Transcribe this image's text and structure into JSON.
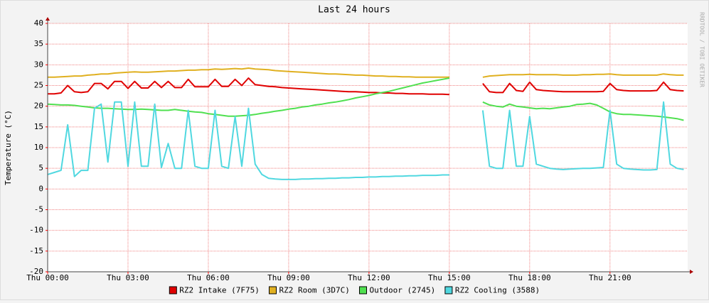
{
  "chart_data": {
    "type": "line",
    "title": "Last 24 hours",
    "y_label": "Temperature (°C)",
    "credit": "RRDTOOL / TOBI OETIKER",
    "x": [
      0,
      0.25,
      0.5,
      0.75,
      1,
      1.25,
      1.5,
      1.75,
      2,
      2.25,
      2.5,
      2.75,
      3,
      3.25,
      3.5,
      3.75,
      4,
      4.25,
      4.5,
      4.75,
      5,
      5.25,
      5.5,
      5.75,
      6,
      6.25,
      6.5,
      6.75,
      7,
      7.25,
      7.5,
      7.75,
      8,
      8.25,
      8.5,
      8.75,
      9,
      9.25,
      9.5,
      9.75,
      10,
      10.25,
      10.5,
      10.75,
      11,
      11.25,
      11.5,
      11.75,
      12,
      12.25,
      12.5,
      12.75,
      13,
      13.25,
      13.5,
      13.75,
      14,
      14.25,
      14.5,
      14.75,
      15,
      15.25,
      15.5,
      15.75,
      16,
      16.25,
      16.5,
      16.75,
      17,
      17.25,
      17.5,
      17.75,
      18,
      18.25,
      18.5,
      18.75,
      19,
      19.25,
      19.5,
      19.75,
      20,
      20.25,
      20.5,
      20.75,
      21,
      21.25,
      21.5,
      21.75,
      22,
      22.25,
      22.5,
      22.75,
      23,
      23.25,
      23.5,
      23.75
    ],
    "xlim": [
      0,
      23.9
    ],
    "xticks": [
      {
        "value": 0,
        "label": "Thu 00:00"
      },
      {
        "value": 3,
        "label": "Thu 03:00"
      },
      {
        "value": 6,
        "label": "Thu 06:00"
      },
      {
        "value": 9,
        "label": "Thu 09:00"
      },
      {
        "value": 12,
        "label": "Thu 12:00"
      },
      {
        "value": 15,
        "label": "Thu 15:00"
      },
      {
        "value": 18,
        "label": "Thu 18:00"
      },
      {
        "value": 21,
        "label": "Thu 21:00"
      }
    ],
    "ylim": [
      -20,
      40
    ],
    "yticks": [
      -20,
      -15,
      -10,
      -5,
      0,
      5,
      10,
      15,
      20,
      25,
      30,
      35,
      40
    ],
    "grid": true,
    "series": [
      {
        "name": "RZ2 Intake (7F75)",
        "color": "#e00000",
        "values": [
          23,
          23,
          23.2,
          25,
          23.5,
          23.3,
          23.5,
          25.5,
          25.5,
          24.2,
          26,
          26,
          24.3,
          26,
          24.4,
          24.4,
          26,
          24.5,
          26,
          24.5,
          24.5,
          26.5,
          24.7,
          24.7,
          24.7,
          26.5,
          24.8,
          24.8,
          26.5,
          25,
          26.8,
          25.2,
          25,
          24.8,
          24.7,
          24.5,
          24.4,
          24.3,
          24.2,
          24.1,
          24,
          23.9,
          23.8,
          23.7,
          23.6,
          23.5,
          23.5,
          23.4,
          23.3,
          23.3,
          23.2,
          23.2,
          23.1,
          23.1,
          23,
          23,
          23,
          22.9,
          22.9,
          22.9,
          22.8,
          null,
          null,
          null,
          null,
          25.5,
          23.5,
          23.3,
          23.3,
          25.5,
          23.8,
          23.6,
          25.8,
          24,
          23.8,
          23.7,
          23.6,
          23.5,
          23.5,
          23.5,
          23.5,
          23.5,
          23.5,
          23.6,
          25.5,
          24,
          23.8,
          23.7,
          23.7,
          23.7,
          23.7,
          23.8,
          25.8,
          24,
          23.8,
          23.7
        ]
      },
      {
        "name": "RZ2 Room (3D7C)",
        "color": "#e0b020",
        "values": [
          27,
          27,
          27.1,
          27.2,
          27.3,
          27.3,
          27.5,
          27.6,
          27.8,
          27.8,
          28,
          28.1,
          28.2,
          28.3,
          28.2,
          28.2,
          28.3,
          28.4,
          28.5,
          28.5,
          28.6,
          28.7,
          28.7,
          28.8,
          28.8,
          29,
          28.9,
          29,
          29.1,
          29,
          29.2,
          29,
          28.9,
          28.8,
          28.6,
          28.5,
          28.4,
          28.3,
          28.2,
          28.1,
          28,
          27.9,
          27.8,
          27.8,
          27.7,
          27.6,
          27.5,
          27.5,
          27.4,
          27.3,
          27.3,
          27.2,
          27.2,
          27.1,
          27.1,
          27,
          27,
          27,
          27,
          27,
          27,
          null,
          null,
          null,
          null,
          27,
          27.3,
          27.4,
          27.5,
          27.6,
          27.6,
          27.6,
          27.7,
          27.6,
          27.6,
          27.6,
          27.6,
          27.5,
          27.5,
          27.5,
          27.6,
          27.6,
          27.7,
          27.7,
          27.8,
          27.6,
          27.5,
          27.5,
          27.5,
          27.5,
          27.5,
          27.5,
          27.8,
          27.6,
          27.5,
          27.5
        ]
      },
      {
        "name": "Outdoor (2745)",
        "color": "#50e050",
        "values": [
          20.5,
          20.4,
          20.3,
          20.3,
          20.2,
          20,
          19.8,
          19.6,
          19.5,
          19.5,
          19.4,
          19.3,
          19.2,
          19.2,
          19.3,
          19.2,
          19.1,
          19,
          19,
          19.2,
          19,
          18.8,
          18.6,
          18.5,
          18.2,
          18,
          17.8,
          17.6,
          17.6,
          17.7,
          17.8,
          18,
          18.3,
          18.5,
          18.8,
          19,
          19.3,
          19.5,
          19.8,
          20,
          20.3,
          20.5,
          20.8,
          21,
          21.3,
          21.6,
          22,
          22.3,
          22.6,
          23,
          23.3,
          23.6,
          24,
          24.4,
          24.8,
          25.2,
          25.6,
          25.9,
          26.2,
          26.5,
          26.8,
          null,
          null,
          null,
          null,
          21,
          20.3,
          20,
          19.8,
          20.5,
          20,
          19.8,
          19.6,
          19.4,
          19.5,
          19.4,
          19.6,
          19.8,
          20,
          20.4,
          20.5,
          20.7,
          20.3,
          19.5,
          18.6,
          18.2,
          18,
          18,
          17.9,
          17.8,
          17.7,
          17.6,
          17.4,
          17.2,
          17,
          16.6
        ]
      },
      {
        "name": "RZ2 Cooling (3588)",
        "color": "#50d8e0",
        "values": [
          3.5,
          4,
          4.5,
          15.5,
          3,
          4.5,
          4.5,
          19.5,
          20.5,
          6.5,
          21,
          21,
          5.5,
          21,
          5.5,
          5.5,
          20.5,
          5.2,
          11,
          5,
          5,
          19,
          5.5,
          5,
          5,
          19,
          5.5,
          5,
          17.5,
          5.5,
          19.5,
          6,
          3.5,
          2.6,
          2.4,
          2.3,
          2.3,
          2.3,
          2.4,
          2.4,
          2.5,
          2.5,
          2.6,
          2.6,
          2.7,
          2.7,
          2.8,
          2.8,
          2.9,
          2.9,
          3,
          3,
          3.1,
          3.1,
          3.2,
          3.2,
          3.3,
          3.3,
          3.3,
          3.4,
          3.4,
          null,
          null,
          null,
          null,
          19,
          5.5,
          5,
          5,
          19,
          5.5,
          5.5,
          17.5,
          6,
          5.5,
          5,
          4.8,
          4.7,
          4.8,
          4.9,
          5,
          5,
          5.1,
          5.2,
          19,
          6,
          5,
          4.8,
          4.7,
          4.6,
          4.6,
          4.7,
          21,
          6,
          5,
          4.7
        ]
      }
    ]
  }
}
